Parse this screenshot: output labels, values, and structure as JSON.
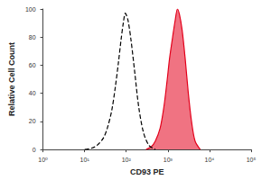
{
  "chart_data": {
    "type": "line",
    "x_label": "CD93 PE",
    "y_label": "Relative Cell Count",
    "log": "x",
    "grid": false,
    "xlim": [
      1,
      100000
    ],
    "xticks": [
      {
        "value": 1,
        "label": "10⁰"
      },
      {
        "value": 10,
        "label": "10¹"
      },
      {
        "value": 100,
        "label": "10²"
      },
      {
        "value": 1000,
        "label": "10³"
      },
      {
        "value": 10000,
        "label": "10⁴"
      },
      {
        "value": 100000,
        "label": "10⁵"
      }
    ],
    "ylim": [
      0,
      100
    ],
    "yticks": [
      0,
      20,
      40,
      60,
      80,
      100
    ],
    "series": [
      {
        "type": "line",
        "line_style": "dashed",
        "color": "#000000",
        "x": [
          10,
          15,
          20,
          28,
          35,
          45,
          55,
          65,
          75,
          85,
          95,
          110,
          130,
          160,
          200,
          260,
          350,
          500
        ],
        "values": [
          0,
          1,
          3,
          8,
          15,
          28,
          45,
          62,
          78,
          90,
          97,
          92,
          78,
          55,
          30,
          12,
          3,
          0
        ]
      },
      {
        "type": "area",
        "line_style": "solid",
        "color": "#e3001b",
        "x": [
          300,
          400,
          500,
          650,
          800,
          950,
          1100,
          1300,
          1500,
          1700,
          1900,
          2200,
          2600,
          3100,
          3700,
          4500,
          6000
        ],
        "values": [
          0,
          2,
          6,
          15,
          30,
          48,
          65,
          80,
          92,
          100,
          96,
          85,
          65,
          40,
          20,
          6,
          0
        ]
      }
    ]
  }
}
